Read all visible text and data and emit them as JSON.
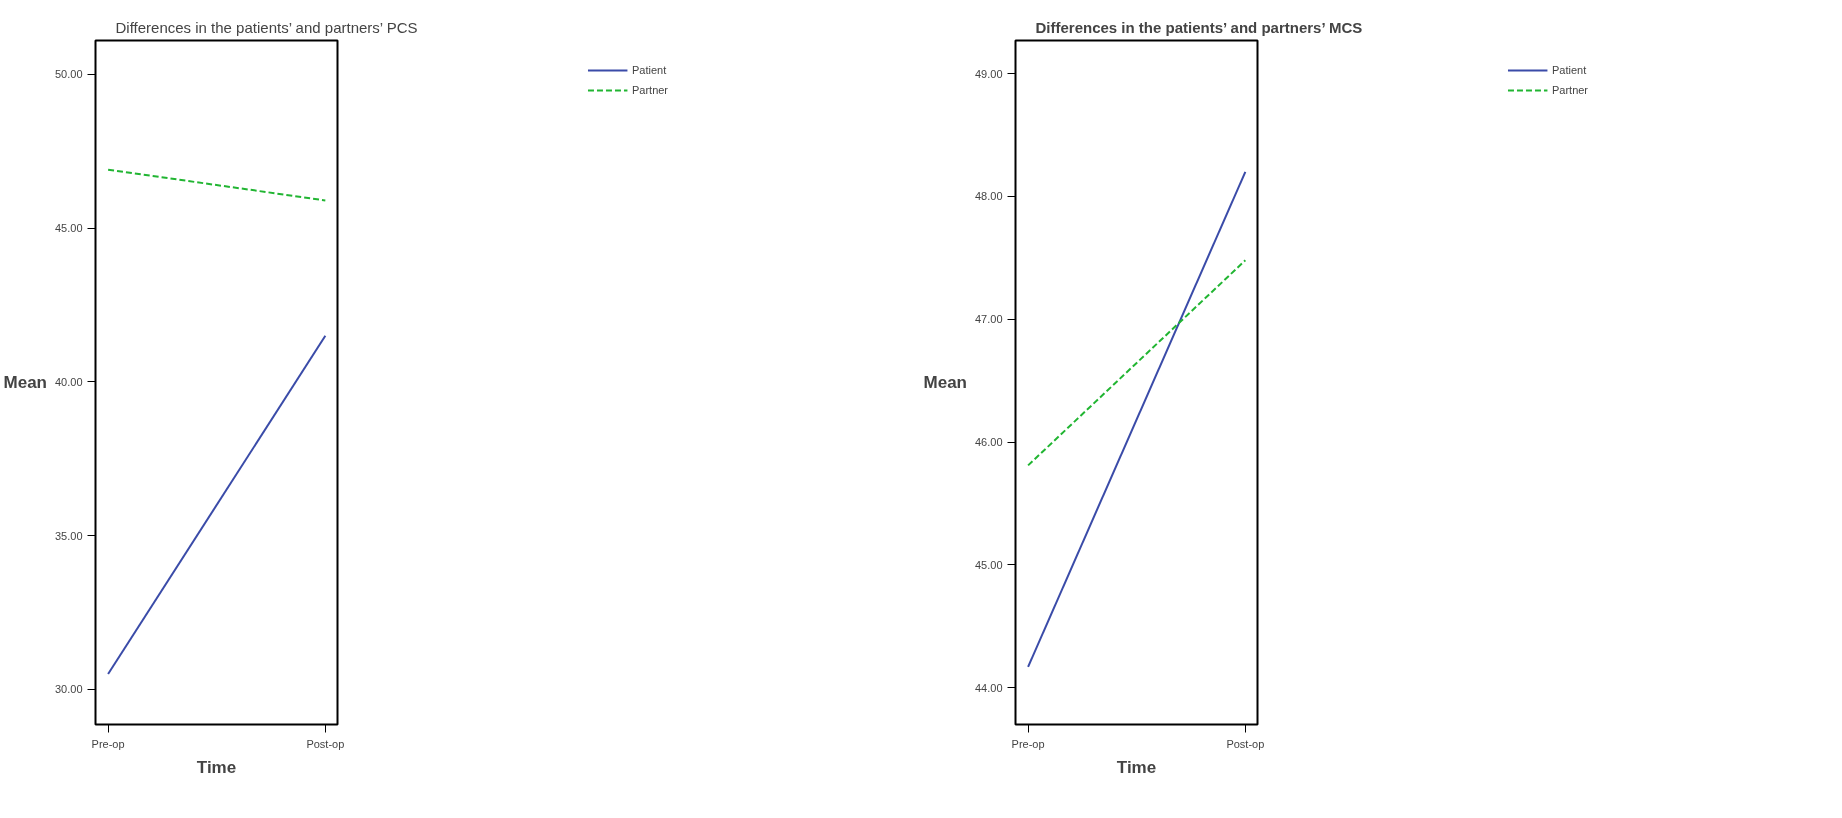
{
  "chart_data": [
    {
      "type": "line",
      "title": "Differences in the patients’ and partners’ PCS",
      "xlabel": "Time",
      "ylabel": "Mean",
      "categories": [
        "Pre-op",
        "Post-op"
      ],
      "series": [
        {
          "name": "Patient",
          "color": "#3a4ba8",
          "values": [
            30.5,
            41.5
          ],
          "line_style": "solid"
        },
        {
          "name": "Partner",
          "color": "#21b532",
          "values": [
            46.9,
            45.9
          ],
          "line_style": "dashed"
        }
      ],
      "ylim": [
        28.86,
        51.1
      ],
      "yticks": [
        {
          "value": 30,
          "label": "30.00"
        },
        {
          "value": 35,
          "label": "35.00"
        },
        {
          "value": 40,
          "label": "40.00"
        },
        {
          "value": 45,
          "label": "45.00"
        },
        {
          "value": 50,
          "label": "50.00"
        }
      ],
      "grid": false,
      "legend": "top right"
    },
    {
      "type": "line",
      "title": "Differences in the patients’ and partners’ MCS",
      "xlabel": "Time",
      "ylabel": "Mean",
      "categories": [
        "Pre-op",
        "Post-op"
      ],
      "series": [
        {
          "name": "Patient",
          "color": "#3a4ba8",
          "values": [
            44.17,
            48.2
          ],
          "line_style": "solid"
        },
        {
          "name": "Partner",
          "color": "#21b532",
          "values": [
            45.81,
            47.48
          ],
          "line_style": "dashed"
        }
      ],
      "ylim": [
        43.7,
        49.27
      ],
      "yticks": [
        {
          "value": 44,
          "label": "44.00"
        },
        {
          "value": 45,
          "label": "45.00"
        },
        {
          "value": 46,
          "label": "46.00"
        },
        {
          "value": 47,
          "label": "47.00"
        },
        {
          "value": 48,
          "label": "48.00"
        },
        {
          "value": 49,
          "label": "49.00"
        }
      ],
      "grid": false,
      "legend": "top right"
    }
  ]
}
